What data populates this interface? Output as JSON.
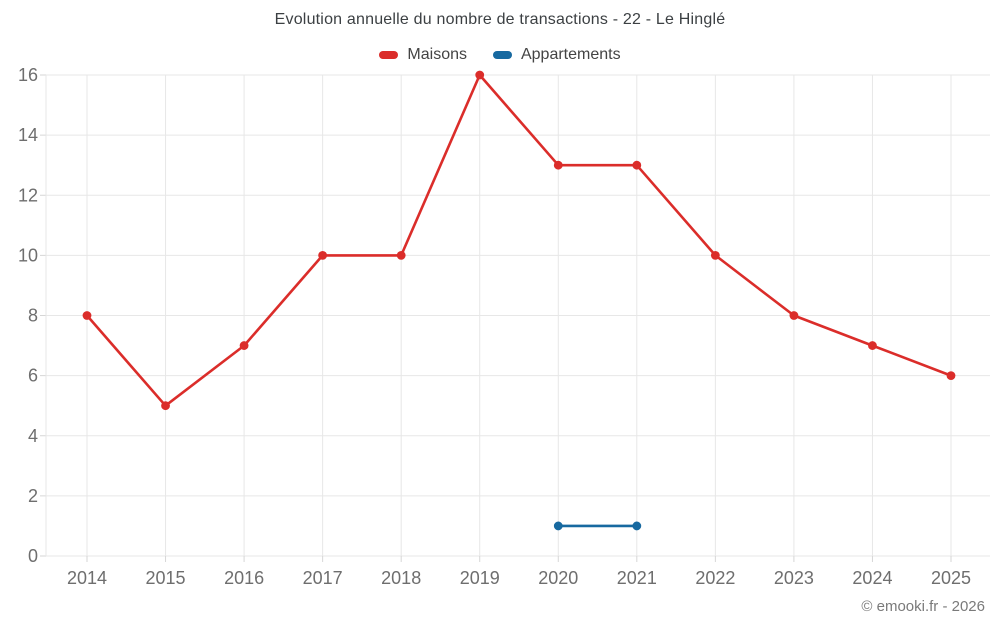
{
  "header": {
    "title": "Evolution annuelle du nombre de transactions - 22 - Le Hinglé"
  },
  "legend": {
    "items": [
      {
        "label": "Maisons",
        "color": "#db2d2a"
      },
      {
        "label": "Appartements",
        "color": "#1769a0"
      }
    ]
  },
  "footer": {
    "credit": "© emooki.fr - 2026"
  },
  "colors": {
    "grid": "#e7e7e7",
    "tick": "#d6d6d6",
    "axis_label": "#6e6e6e"
  },
  "chart_data": {
    "type": "line",
    "title": "Evolution annuelle du nombre de transactions - 22 - Le Hinglé",
    "categories": [
      "2014",
      "2015",
      "2016",
      "2017",
      "2018",
      "2019",
      "2020",
      "2021",
      "2022",
      "2023",
      "2024",
      "2025"
    ],
    "series": [
      {
        "name": "Maisons",
        "color": "#db2d2a",
        "values": [
          8,
          5,
          7,
          10,
          10,
          16,
          13,
          13,
          10,
          8,
          7,
          6
        ]
      },
      {
        "name": "Appartements",
        "color": "#1769a0",
        "values": [
          null,
          null,
          null,
          null,
          null,
          null,
          1,
          1,
          null,
          null,
          null,
          null
        ]
      }
    ],
    "xlabel": "",
    "ylabel": "",
    "ylim": [
      0,
      16
    ],
    "yticks": [
      0,
      2,
      4,
      6,
      8,
      10,
      12,
      14,
      16
    ],
    "grid": true,
    "legend_position": "top",
    "marker": "circle"
  }
}
